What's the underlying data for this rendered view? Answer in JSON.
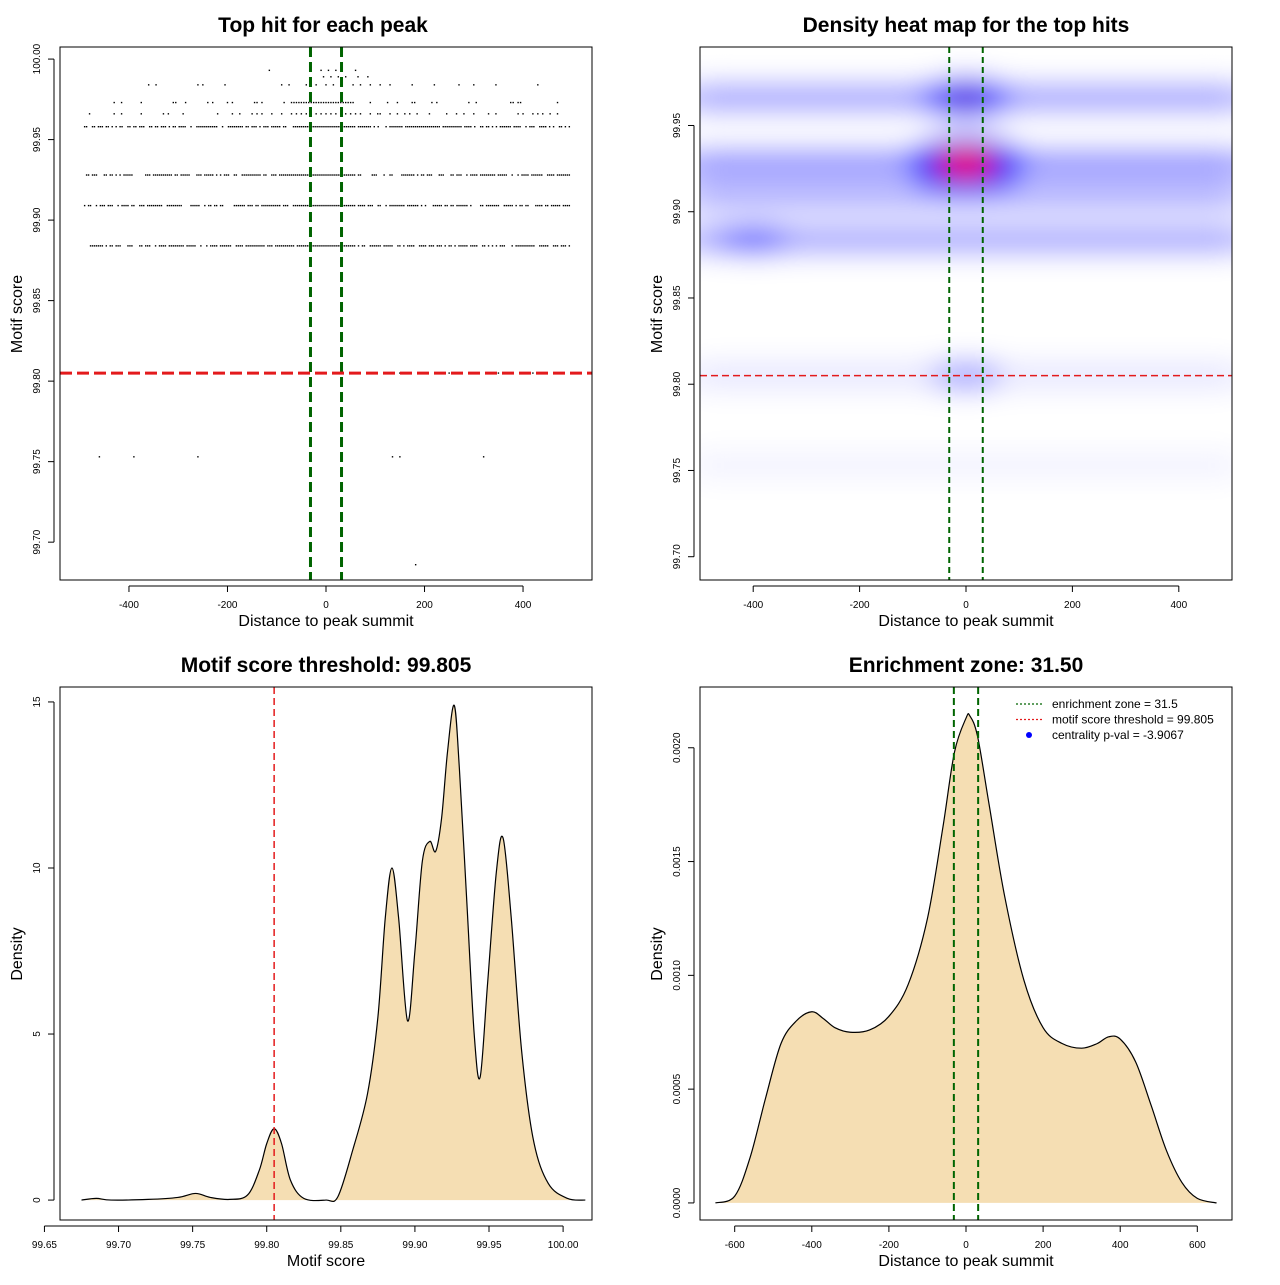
{
  "chart_data": [
    {
      "id": "scatter",
      "type": "scatter",
      "title": "Top hit for each peak",
      "xlabel": "Distance to peak summit",
      "ylabel": "Motif score",
      "xlim": [
        -540,
        540
      ],
      "ylim": [
        99.6765,
        100.0075
      ],
      "xticks": [
        -400,
        -200,
        0,
        200,
        400
      ],
      "yticks": [
        99.7,
        99.75,
        99.8,
        99.85,
        99.9,
        99.95,
        100.0
      ],
      "ytick_labels": [
        "99.70",
        "99.75",
        "99.80",
        "99.85",
        "99.90",
        "99.95",
        "100.00"
      ],
      "grid": false,
      "vlines": [
        -31.5,
        31.5
      ],
      "hline": 99.805,
      "rows": [
        {
          "y": 99.993,
          "x": [
            -115,
            -10,
            5,
            20,
            60
          ]
        },
        {
          "y": 99.989,
          "x": [
            -5,
            10,
            25,
            40,
            65,
            85
          ]
        },
        {
          "y": 99.984,
          "x": [
            -360,
            -345,
            -260,
            -250,
            -205,
            -90,
            -75,
            -40,
            -20,
            0,
            15,
            30,
            55,
            70,
            90,
            110,
            130,
            175,
            220,
            270,
            300,
            345,
            430
          ]
        },
        {
          "y": 99.973,
          "x": [
            -430,
            -415,
            -375,
            -310,
            -305,
            -285,
            -240,
            -230,
            -200,
            -190,
            -145,
            -140,
            -130,
            -85,
            -70,
            -65,
            -60,
            -55,
            -50,
            -45,
            -40,
            -35,
            -30,
            -25,
            -20,
            -15,
            -10,
            -5,
            0,
            5,
            10,
            15,
            20,
            25,
            30,
            35,
            40,
            45,
            50,
            55,
            90,
            125,
            145,
            175,
            180,
            215,
            225,
            290,
            305,
            375,
            380,
            390,
            395,
            470
          ]
        },
        {
          "y": 99.966,
          "x": [
            -480,
            -430,
            -415,
            -375,
            -330,
            -320,
            -290,
            -220,
            -190,
            -175,
            -150,
            -140,
            -130,
            -110,
            -90,
            -70,
            -60,
            -50,
            -40,
            -30,
            -20,
            -10,
            0,
            10,
            20,
            30,
            40,
            50,
            60,
            70,
            90,
            105,
            110,
            130,
            145,
            160,
            170,
            185,
            210,
            245,
            265,
            280,
            300,
            330,
            345,
            390,
            400,
            420,
            430,
            440,
            455,
            470
          ]
        }
      ],
      "dense_rows": [
        99.958,
        99.928,
        99.909,
        99.884
      ],
      "dense_range": [
        -490,
        495
      ],
      "sparse_rows": [
        {
          "y": 99.805,
          "x": [
            -260,
            -180,
            -110,
            -70,
            20,
            60,
            100,
            150,
            250,
            350,
            420
          ]
        },
        {
          "y": 99.753,
          "x": [
            -460,
            -390,
            -260,
            135,
            150,
            320
          ]
        },
        {
          "y": 99.686,
          "x": [
            182
          ]
        }
      ]
    },
    {
      "id": "heatmap",
      "type": "heatmap",
      "title": "Density heat map for the top hits",
      "xlabel": "Distance to peak summit",
      "ylabel": "Motif score",
      "xlim": [
        -500,
        500
      ],
      "ylim": [
        99.6865,
        99.9955
      ],
      "xticks": [
        -400,
        -200,
        0,
        200,
        400
      ],
      "yticks": [
        99.7,
        99.75,
        99.8,
        99.85,
        99.9,
        99.95
      ],
      "ytick_labels": [
        "99.70",
        "99.75",
        "99.80",
        "99.85",
        "99.90",
        "99.95"
      ],
      "grid": false,
      "vlines": [
        -31.5,
        31.5
      ],
      "hline": 99.805,
      "hotspots": [
        {
          "x": 0,
          "y": 99.928,
          "intensity": 1.0
        },
        {
          "x": 0,
          "y": 99.966,
          "intensity": 0.72
        },
        {
          "x": -400,
          "y": 99.884,
          "intensity": 0.55
        },
        {
          "x": 0,
          "y": 99.805,
          "intensity": 0.3
        }
      ],
      "bands": [
        {
          "y": 99.966,
          "intensity": 0.42
        },
        {
          "y": 99.928,
          "intensity": 0.5
        },
        {
          "y": 99.909,
          "intensity": 0.36
        },
        {
          "y": 99.884,
          "intensity": 0.4
        },
        {
          "y": 99.805,
          "intensity": 0.1
        },
        {
          "y": 99.753,
          "intensity": 0.05
        }
      ]
    },
    {
      "id": "score-density",
      "type": "area",
      "title": "Motif score threshold: 99.805",
      "xlabel": "Motif score",
      "ylabel": "Density",
      "xlim": [
        99.6605,
        100.0195
      ],
      "ylim": [
        -0.6,
        15.45
      ],
      "xticks": [
        99.65,
        99.7,
        99.75,
        99.8,
        99.85,
        99.9,
        99.95,
        100.0
      ],
      "xtick_labels": [
        "99.65",
        "99.70",
        "99.75",
        "99.80",
        "99.85",
        "99.90",
        "99.95",
        "100.00"
      ],
      "yticks": [
        0,
        5,
        10,
        15
      ],
      "grid": false,
      "vline": 99.805,
      "x": [
        99.675,
        99.685,
        99.695,
        99.72,
        99.74,
        99.752,
        99.762,
        99.775,
        99.787,
        99.795,
        99.8,
        99.805,
        99.81,
        99.816,
        99.825,
        99.84,
        99.848,
        99.858,
        99.868,
        99.875,
        99.88,
        99.8845,
        99.889,
        99.895,
        99.9,
        99.905,
        99.91,
        99.914,
        99.918,
        99.922,
        99.9265,
        99.93,
        99.935,
        99.94,
        99.944,
        99.949,
        99.955,
        99.9595,
        99.965,
        99.972,
        99.98,
        99.99,
        100.003,
        100.015
      ],
      "y": [
        0,
        0.05,
        0,
        0.02,
        0.08,
        0.2,
        0.08,
        0.02,
        0.15,
        0.9,
        1.7,
        2.15,
        1.7,
        0.6,
        0.05,
        0,
        0.1,
        1.5,
        3.2,
        5.5,
        8.5,
        10,
        8.5,
        5.4,
        7.5,
        10.2,
        10.8,
        10.5,
        11.5,
        13.5,
        14.9,
        13,
        9,
        5,
        3.7,
        6.5,
        9.9,
        10.9,
        8.5,
        4.5,
        1.8,
        0.5,
        0.05,
        0
      ]
    },
    {
      "id": "distance-density",
      "type": "area",
      "title": "Enrichment zone: 31.50",
      "xlabel": "Distance to peak summit",
      "ylabel": "Density",
      "xlim": [
        -690,
        690
      ],
      "ylim": [
        -7.5e-05,
        0.002267
      ],
      "xticks": [
        -600,
        -400,
        -200,
        0,
        200,
        400,
        600
      ],
      "yticks": [
        0,
        0.0005,
        0.001,
        0.0015,
        0.002
      ],
      "ytick_labels": [
        "0.0000",
        "0.0005",
        "0.0010",
        "0.0015",
        "0.0020"
      ],
      "grid": false,
      "vlines": [
        -31.5,
        31.5
      ],
      "x": [
        -650,
        -600,
        -560,
        -520,
        -480,
        -440,
        -400,
        -370,
        -340,
        -300,
        -250,
        -200,
        -150,
        -100,
        -60,
        -30,
        0,
        10,
        30,
        60,
        100,
        150,
        200,
        250,
        300,
        340,
        370,
        400,
        440,
        480,
        520,
        560,
        600,
        650
      ],
      "y": [
        0,
        3e-05,
        0.0002,
        0.00046,
        0.0007,
        0.0008,
        0.00084,
        0.00081,
        0.00077,
        0.00075,
        0.00076,
        0.00082,
        0.00096,
        0.00125,
        0.00165,
        0.00198,
        0.00213,
        0.00214,
        0.00205,
        0.00175,
        0.00135,
        0.00098,
        0.00077,
        0.0007,
        0.00068,
        0.0007,
        0.00073,
        0.00072,
        0.00062,
        0.00043,
        0.00023,
        9e-05,
        2e-05,
        0
      ],
      "legend": {
        "position": "top-right",
        "entries": [
          {
            "label": "enrichment zone = 31.5",
            "color": "#006400",
            "style": "dotted-line"
          },
          {
            "label": "motif score threshold = 99.805",
            "color": "#e31a1c",
            "style": "dotted-line"
          },
          {
            "label": "centrality p-val = -3.9067",
            "color": "#0000ff",
            "style": "point"
          }
        ]
      }
    }
  ],
  "colors": {
    "fill": "#f5deb3",
    "green_line": "#006400",
    "red_line": "#e31a1c",
    "heat_low": "#ffffff",
    "heat_mid": "#0000ff",
    "heat_high": "#ff0000"
  }
}
